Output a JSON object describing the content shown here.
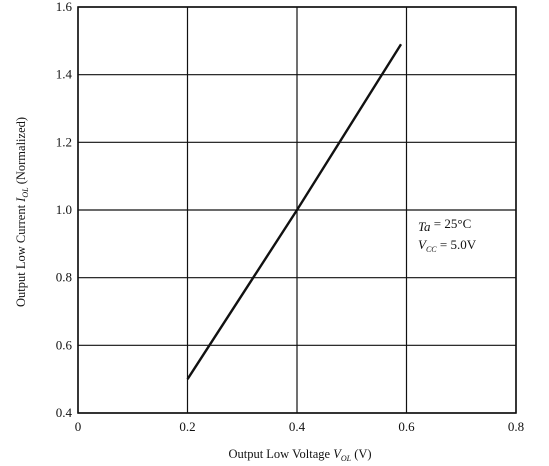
{
  "chart_data": {
    "type": "line",
    "xlabel": {
      "prefix": "Output Low Voltage",
      "symbol": "V",
      "subscript": "OL",
      "unit": "(V)"
    },
    "ylabel": {
      "prefix": "Output Low Current",
      "symbol": "I",
      "subscript": "OL",
      "unit": "(Normalized)"
    },
    "xlim": [
      0,
      0.8
    ],
    "ylim": [
      0.4,
      1.6
    ],
    "x_ticks": [
      "0",
      "0.2",
      "0.4",
      "0.6",
      "0.8"
    ],
    "y_ticks": [
      "0.4",
      "0.6",
      "0.8",
      "1.0",
      "1.2",
      "1.4",
      "1.6"
    ],
    "grid": true,
    "series": [
      {
        "x": [
          0.2,
          0.4,
          0.59
        ],
        "y": [
          0.5,
          1.0,
          1.49
        ]
      }
    ],
    "annotations": [
      {
        "symbol": "Ta",
        "subscript": "",
        "value": "= 25°C"
      },
      {
        "symbol": "V",
        "subscript": "CC",
        "value": "= 5.0V"
      }
    ],
    "colors": {
      "line": "#111111",
      "grid": "#111111"
    }
  }
}
